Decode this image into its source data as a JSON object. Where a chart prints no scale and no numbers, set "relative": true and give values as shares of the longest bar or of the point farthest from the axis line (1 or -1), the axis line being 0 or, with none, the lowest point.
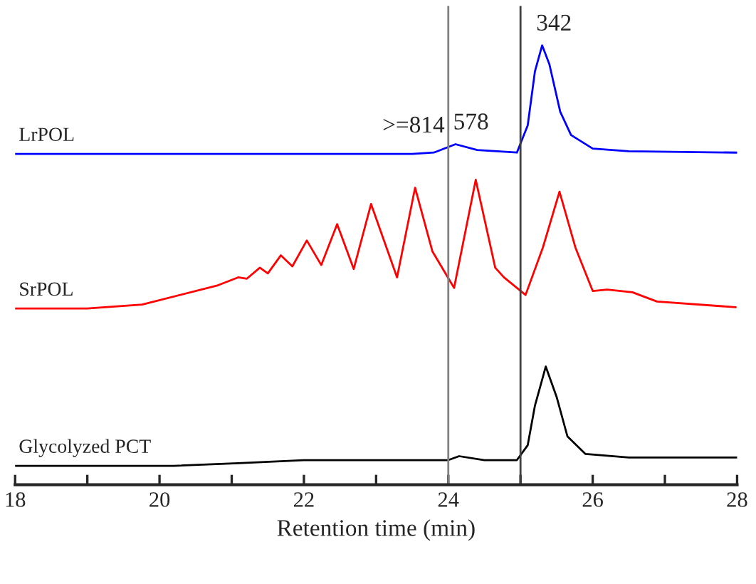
{
  "chart_data": {
    "type": "line",
    "relative": true,
    "xlabel": "Retention time (min)",
    "xlim": [
      18,
      28
    ],
    "xticks": [
      18,
      {
        "value": 19,
        "label": null
      },
      20,
      {
        "value": 21,
        "label": null
      },
      22,
      {
        "value": 23,
        "label": null
      },
      24,
      {
        "value": 25,
        "label": null
      },
      26,
      {
        "value": 27,
        "label": null
      },
      28
    ],
    "tick_labels": "x",
    "grid": false,
    "legend": false,
    "marker": "none",
    "line_style": "solid",
    "series": [
      {
        "name": "LrPOL",
        "color": "#0000ff",
        "x": [
          18,
          20,
          22,
          23.5,
          23.8,
          24.1,
          24.4,
          24.95,
          25.1,
          25.2,
          25.3,
          25.4,
          25.55,
          25.7,
          26.0,
          26.5,
          28
        ],
        "values": [
          0.753,
          0.753,
          0.753,
          0.753,
          0.756,
          0.775,
          0.762,
          0.756,
          0.818,
          0.941,
          1.0,
          0.957,
          0.849,
          0.796,
          0.765,
          0.759,
          0.756
        ]
      },
      {
        "name": "SrPOL",
        "color": "#ff0000",
        "x": [
          18,
          19,
          19.76,
          20.81,
          21.09,
          21.21,
          21.39,
          21.5,
          21.68,
          21.84,
          22.04,
          22.24,
          22.46,
          22.69,
          22.93,
          23.29,
          23.54,
          23.78,
          24.08,
          24.38,
          24.65,
          24.77,
          25.07,
          25.31,
          25.54,
          25.76,
          26.0,
          26.2,
          26.55,
          26.89,
          27.98
        ],
        "values": [
          0.401,
          0.401,
          0.41,
          0.454,
          0.472,
          0.469,
          0.494,
          0.481,
          0.522,
          0.497,
          0.556,
          0.5,
          0.593,
          0.491,
          0.639,
          0.472,
          0.676,
          0.531,
          0.448,
          0.694,
          0.494,
          0.472,
          0.432,
          0.54,
          0.667,
          0.54,
          0.441,
          0.444,
          0.438,
          0.417,
          0.404
        ]
      },
      {
        "name": "Glycolyzed PCT",
        "color": "#000000",
        "x": [
          18,
          20.2,
          21.09,
          22.0,
          24.0,
          24.15,
          24.5,
          24.95,
          25.1,
          25.2,
          25.35,
          25.5,
          25.65,
          25.9,
          26.5,
          28
        ],
        "values": [
          0.043,
          0.043,
          0.049,
          0.056,
          0.056,
          0.065,
          0.056,
          0.056,
          0.09,
          0.18,
          0.269,
          0.2,
          0.11,
          0.07,
          0.062,
          0.062
        ]
      }
    ],
    "ref_lines": [
      {
        "axis": "x",
        "value": 24,
        "color": "#808080"
      },
      {
        "axis": "x",
        "value": 25,
        "color": "#404040"
      }
    ],
    "annotations": [
      ">=814",
      {
        "text": "578",
        "x": 24.15,
        "y": 0.775
      },
      {
        "text": "342",
        "x": 25.3,
        "y": 1.0
      }
    ]
  }
}
